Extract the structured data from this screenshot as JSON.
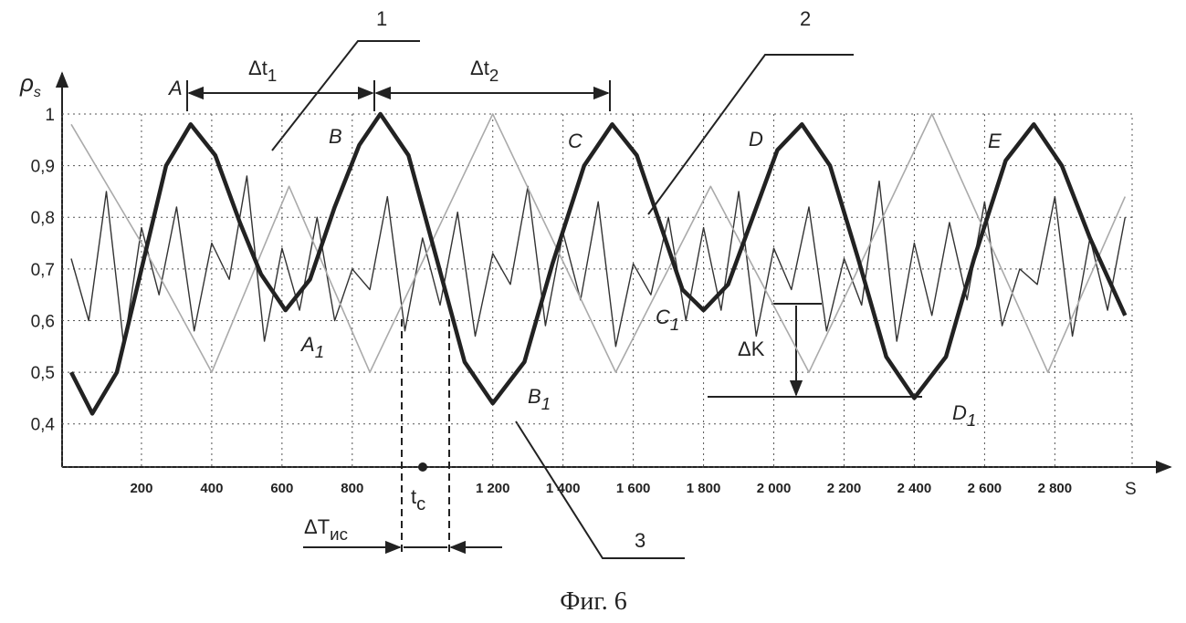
{
  "chart_data": {
    "type": "line",
    "ylabel": "ρ",
    "ylabel_sub": "s",
    "xlabel": "S",
    "caption": "Фиг. 6",
    "xlim": [
      0,
      3020
    ],
    "ylim": [
      0.32,
      1.0
    ],
    "xticks": [
      200,
      400,
      600,
      800,
      {
        "value": 1200,
        "label": "1 200"
      },
      {
        "value": 1400,
        "label": "1 400"
      },
      {
        "value": 1600,
        "label": "1 600"
      },
      {
        "value": 1800,
        "label": "1 800"
      },
      {
        "value": 2000,
        "label": "2 000"
      },
      {
        "value": 2200,
        "label": "2 200"
      },
      {
        "value": 2400,
        "label": "2 400"
      },
      {
        "value": 2600,
        "label": "2 600"
      },
      {
        "value": 2800,
        "label": "2 800"
      }
    ],
    "yticks": [
      {
        "value": 0.4,
        "label": "0,4"
      },
      {
        "value": 0.5,
        "label": "0,5"
      },
      {
        "value": 0.6,
        "label": "0,6"
      },
      {
        "value": 0.7,
        "label": "0,7"
      },
      {
        "value": 0.8,
        "label": "0,8"
      },
      {
        "value": 0.9,
        "label": "0,9"
      },
      1
    ],
    "grid": true,
    "series": [
      {
        "color": "#333333",
        "x": [
          0,
          50,
          100,
          150,
          200,
          250,
          300,
          350,
          400,
          450,
          500,
          550,
          600,
          650,
          700,
          750,
          800,
          850,
          900,
          950,
          1000,
          1050,
          1100,
          1150,
          1200,
          1250,
          1300,
          1350,
          1400,
          1450,
          1500,
          1550,
          1600,
          1650,
          1700,
          1750,
          1800,
          1850,
          1900,
          1950,
          2000,
          2050,
          2100,
          2150,
          2200,
          2250,
          2300,
          2350,
          2400,
          2450,
          2500,
          2550,
          2600,
          2650,
          2700,
          2750,
          2800,
          2850,
          2900,
          2950,
          3000
        ],
        "values": [
          0.72,
          0.6,
          0.85,
          0.55,
          0.78,
          0.65,
          0.82,
          0.58,
          0.75,
          0.68,
          0.88,
          0.56,
          0.74,
          0.62,
          0.8,
          0.6,
          0.7,
          0.66,
          0.84,
          0.58,
          0.76,
          0.63,
          0.81,
          0.57,
          0.73,
          0.67,
          0.86,
          0.59,
          0.77,
          0.64,
          0.83,
          0.55,
          0.71,
          0.65,
          0.8,
          0.6,
          0.78,
          0.62,
          0.85,
          0.57,
          0.74,
          0.66,
          0.82,
          0.58,
          0.72,
          0.63,
          0.87,
          0.56,
          0.75,
          0.61,
          0.79,
          0.64,
          0.83,
          0.59,
          0.7,
          0.67,
          0.84,
          0.57,
          0.76,
          0.62,
          0.8
        ]
      },
      {
        "color": "#aaaaaa",
        "x": [
          0,
          200,
          400,
          620,
          850,
          1200,
          1550,
          1820,
          2100,
          2450,
          2780,
          3000
        ],
        "values": [
          0.98,
          0.75,
          0.5,
          0.86,
          0.5,
          1.0,
          0.5,
          0.86,
          0.5,
          1.0,
          0.5,
          0.84
        ]
      },
      {
        "color": "#222222",
        "x": [
          0,
          60,
          130,
          200,
          270,
          340,
          410,
          480,
          540,
          610,
          680,
          750,
          820,
          880,
          960,
          1040,
          1120,
          1200,
          1290,
          1370,
          1460,
          1540,
          1610,
          1670,
          1740,
          1800,
          1870,
          1940,
          2010,
          2080,
          2160,
          2240,
          2320,
          2400,
          2490,
          2570,
          2660,
          2740,
          2820,
          2900,
          3000
        ],
        "values": [
          0.5,
          0.42,
          0.5,
          0.7,
          0.9,
          0.98,
          0.92,
          0.79,
          0.69,
          0.62,
          0.68,
          0.82,
          0.94,
          1.0,
          0.92,
          0.72,
          0.52,
          0.44,
          0.52,
          0.71,
          0.9,
          0.98,
          0.92,
          0.8,
          0.66,
          0.62,
          0.67,
          0.8,
          0.93,
          0.98,
          0.9,
          0.72,
          0.53,
          0.45,
          0.53,
          0.72,
          0.91,
          0.98,
          0.9,
          0.76,
          0.61
        ]
      }
    ],
    "annotations": [
      {
        "text": "A"
      },
      {
        "text": "B"
      },
      {
        "text": "C"
      },
      {
        "text": "D"
      },
      {
        "text": "E"
      },
      {
        "text": "A",
        "sub": "1"
      },
      {
        "text": "B",
        "sub": "1"
      },
      {
        "text": "C",
        "sub": "1"
      },
      {
        "text": "D",
        "sub": "1"
      },
      {
        "text": "Δt",
        "sub": "1"
      },
      {
        "text": "Δt",
        "sub": "2"
      },
      {
        "text": "ΔK"
      },
      {
        "text": "t",
        "sub": "c"
      },
      {
        "text": "ΔT",
        "sub": "ис"
      },
      {
        "text": "1"
      },
      {
        "text": "2"
      },
      {
        "text": "3"
      }
    ]
  }
}
